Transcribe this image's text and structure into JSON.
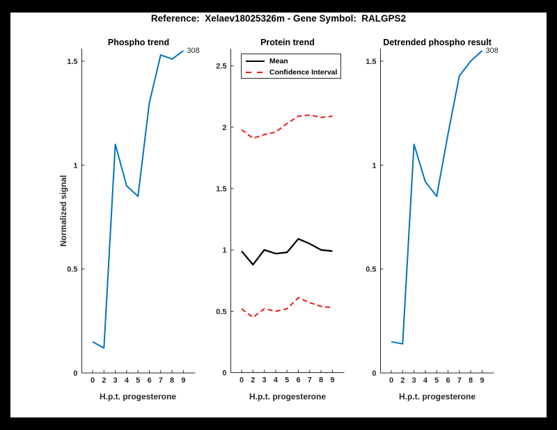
{
  "figure": {
    "title": "Reference:  Xelaev18025326m - Gene Symbol:  RALGPS2",
    "background": "#000000",
    "canvas_background": "#ffffff",
    "axes_color": "#262626"
  },
  "chart_data": [
    {
      "type": "line",
      "title": "Phospho trend",
      "xlabel": "H.p.t. progesterone",
      "ylabel": "Normalized signal",
      "x_ticklabels": [
        "0",
        "2",
        "3",
        "4",
        "5",
        "6",
        "7",
        "8",
        "9"
      ],
      "ytick_labels": [
        "0",
        "0.5",
        "1",
        "1.5"
      ],
      "ylim": [
        0,
        1.56
      ],
      "grid": false,
      "end_label": "308",
      "series": [
        {
          "name": "308",
          "color": "#0072bd",
          "style": "solid",
          "values": [
            0.15,
            0.12,
            1.1,
            0.9,
            0.85,
            1.3,
            1.53,
            1.51,
            1.55
          ]
        }
      ]
    },
    {
      "type": "line",
      "title": "Protein trend",
      "xlabel": "H.p.t. progesterone",
      "ylabel": "",
      "x_ticklabels": [
        "0",
        "2",
        "3",
        "4",
        "5",
        "6",
        "7",
        "8",
        "9"
      ],
      "ytick_labels": [
        "0",
        "0.5",
        "1",
        "1.5",
        "2",
        "2.5"
      ],
      "ylim": [
        0,
        2.64
      ],
      "grid": false,
      "legend": {
        "position": "northeast",
        "entries": [
          "Mean",
          "Confidence Interval"
        ]
      },
      "series": [
        {
          "name": "Mean",
          "color": "#000000",
          "style": "solid",
          "values": [
            0.99,
            0.88,
            1.0,
            0.97,
            0.98,
            1.09,
            1.05,
            1.0,
            0.99
          ]
        },
        {
          "name": "Confidence Interval upper",
          "color": "#f01616",
          "style": "dashed",
          "values": [
            1.98,
            1.91,
            1.94,
            1.96,
            2.03,
            2.09,
            2.1,
            2.08,
            2.09
          ]
        },
        {
          "name": "Confidence Interval lower",
          "color": "#f01616",
          "style": "dashed",
          "values": [
            0.52,
            0.45,
            0.52,
            0.5,
            0.52,
            0.61,
            0.57,
            0.54,
            0.53
          ]
        }
      ]
    },
    {
      "type": "line",
      "title": "Detrended phospho result",
      "xlabel": "H.p.t. progesterone",
      "ylabel": "",
      "x_ticklabels": [
        "0",
        "2",
        "3",
        "4",
        "5",
        "6",
        "7",
        "8",
        "9"
      ],
      "ytick_labels": [
        "0",
        "0.5",
        "1",
        "1.5"
      ],
      "ylim": [
        0,
        1.56
      ],
      "grid": false,
      "end_label": "308",
      "series": [
        {
          "name": "308",
          "color": "#0072bd",
          "style": "solid",
          "values": [
            0.15,
            0.14,
            1.1,
            0.92,
            0.85,
            1.15,
            1.43,
            1.5,
            1.55
          ]
        }
      ]
    }
  ]
}
